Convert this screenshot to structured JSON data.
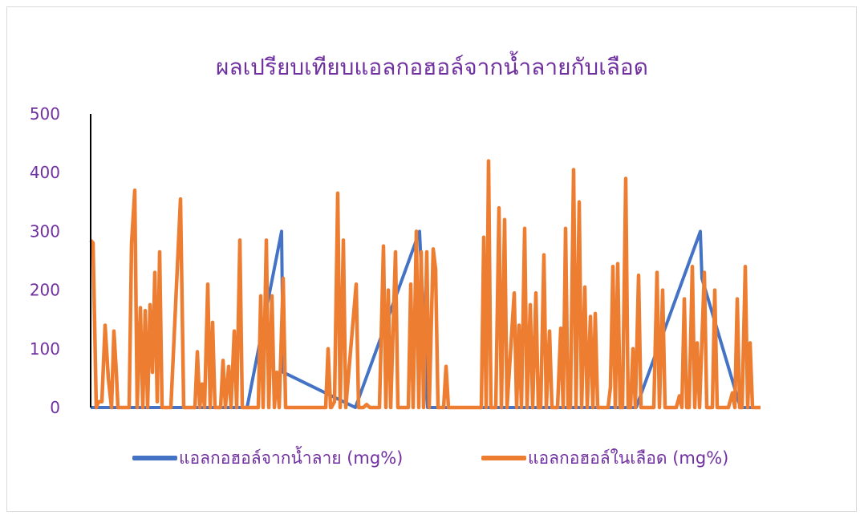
{
  "chart_data": {
    "type": "line",
    "title": "ผลเปรียบเทียบแอลกอฮอล์จากน้ำลายกับเลือด",
    "xlabel": "",
    "ylabel": "",
    "ylim": [
      0,
      500
    ],
    "yticks": [
      "0",
      "100",
      "200",
      "300",
      "400",
      "500"
    ],
    "grid": false,
    "legend_position": "bottom",
    "series": [
      {
        "name": "แอลกอฮอล์จากน้ำลาย (mg%)",
        "color": "#4472c4",
        "points": [
          [
            0,
            0
          ],
          [
            19,
            0
          ],
          [
            62,
            0
          ],
          [
            160,
            0
          ],
          [
            195,
            0
          ],
          [
            238,
            300
          ],
          [
            240,
            60
          ],
          [
            330,
            0
          ],
          [
            410,
            300
          ],
          [
            420,
            0
          ],
          [
            540,
            0
          ],
          [
            590,
            0
          ],
          [
            610,
            0
          ],
          [
            680,
            0
          ],
          [
            760,
            300
          ],
          [
            762,
            220
          ],
          [
            810,
            0
          ],
          [
            835,
            0
          ]
        ]
      },
      {
        "name": "แอลกอฮอล์ในเลือด (mg%)",
        "color": "#ed7d31",
        "points": [
          [
            0,
            285
          ],
          [
            3,
            280
          ],
          [
            7,
            0
          ],
          [
            10,
            10
          ],
          [
            14,
            10
          ],
          [
            18,
            140
          ],
          [
            22,
            50
          ],
          [
            26,
            0
          ],
          [
            29,
            130
          ],
          [
            32,
            60
          ],
          [
            34,
            0
          ],
          [
            48,
            0
          ],
          [
            51,
            280
          ],
          [
            55,
            370
          ],
          [
            58,
            0
          ],
          [
            62,
            170
          ],
          [
            65,
            0
          ],
          [
            68,
            165
          ],
          [
            71,
            0
          ],
          [
            74,
            175
          ],
          [
            77,
            60
          ],
          [
            80,
            230
          ],
          [
            83,
            10
          ],
          [
            86,
            265
          ],
          [
            89,
            0
          ],
          [
            100,
            0
          ],
          [
            112,
            355
          ],
          [
            116,
            0
          ],
          [
            130,
            0
          ],
          [
            133,
            95
          ],
          [
            136,
            0
          ],
          [
            139,
            40
          ],
          [
            142,
            0
          ],
          [
            146,
            210
          ],
          [
            149,
            0
          ],
          [
            152,
            145
          ],
          [
            155,
            0
          ],
          [
            162,
            0
          ],
          [
            165,
            80
          ],
          [
            168,
            0
          ],
          [
            172,
            70
          ],
          [
            175,
            0
          ],
          [
            179,
            130
          ],
          [
            182,
            0
          ],
          [
            186,
            285
          ],
          [
            189,
            0
          ],
          [
            196,
            0
          ],
          [
            209,
            0
          ],
          [
            212,
            190
          ],
          [
            215,
            0
          ],
          [
            219,
            285
          ],
          [
            222,
            0
          ],
          [
            226,
            190
          ],
          [
            229,
            0
          ],
          [
            232,
            60
          ],
          [
            235,
            0
          ],
          [
            240,
            220
          ],
          [
            243,
            0
          ],
          [
            300,
            0
          ],
          [
            293,
            0
          ],
          [
            296,
            100
          ],
          [
            299,
            0
          ],
          [
            304,
            10
          ],
          [
            308,
            365
          ],
          [
            311,
            0
          ],
          [
            315,
            285
          ],
          [
            318,
            0
          ],
          [
            331,
            210
          ],
          [
            334,
            0
          ],
          [
            340,
            0
          ],
          [
            344,
            5
          ],
          [
            348,
            0
          ],
          [
            360,
            0
          ],
          [
            365,
            275
          ],
          [
            368,
            0
          ],
          [
            371,
            200
          ],
          [
            374,
            0
          ],
          [
            380,
            265
          ],
          [
            383,
            0
          ],
          [
            396,
            0
          ],
          [
            399,
            210
          ],
          [
            402,
            0
          ],
          [
            406,
            300
          ],
          [
            409,
            0
          ],
          [
            412,
            265
          ],
          [
            415,
            0
          ],
          [
            419,
            265
          ],
          [
            422,
            0
          ],
          [
            427,
            270
          ],
          [
            430,
            235
          ],
          [
            433,
            0
          ],
          [
            440,
            0
          ],
          [
            443,
            70
          ],
          [
            446,
            0
          ],
          [
            487,
            0
          ],
          [
            490,
            290
          ],
          [
            493,
            0
          ],
          [
            496,
            420
          ],
          [
            499,
            0
          ],
          [
            505,
            0
          ],
          [
            509,
            340
          ],
          [
            512,
            0
          ],
          [
            516,
            320
          ],
          [
            519,
            0
          ],
          [
            528,
            195
          ],
          [
            531,
            0
          ],
          [
            534,
            140
          ],
          [
            537,
            0
          ],
          [
            541,
            305
          ],
          [
            544,
            0
          ],
          [
            548,
            175
          ],
          [
            551,
            0
          ],
          [
            555,
            195
          ],
          [
            558,
            0
          ],
          [
            561,
            0
          ],
          [
            565,
            260
          ],
          [
            568,
            0
          ],
          [
            572,
            130
          ],
          [
            575,
            0
          ],
          [
            582,
            0
          ],
          [
            586,
            135
          ],
          [
            589,
            0
          ],
          [
            592,
            305
          ],
          [
            595,
            0
          ],
          [
            598,
            0
          ],
          [
            602,
            405
          ],
          [
            605,
            0
          ],
          [
            609,
            350
          ],
          [
            612,
            0
          ],
          [
            616,
            205
          ],
          [
            619,
            0
          ],
          [
            623,
            155
          ],
          [
            626,
            0
          ],
          [
            629,
            160
          ],
          [
            632,
            0
          ],
          [
            640,
            0
          ],
          [
            645,
            0
          ],
          [
            648,
            35
          ],
          [
            651,
            240
          ],
          [
            654,
            0
          ],
          [
            657,
            245
          ],
          [
            660,
            0
          ],
          [
            663,
            0
          ],
          [
            667,
            390
          ],
          [
            670,
            0
          ],
          [
            673,
            0
          ],
          [
            676,
            100
          ],
          [
            679,
            0
          ],
          [
            683,
            225
          ],
          [
            686,
            0
          ],
          [
            690,
            0
          ],
          [
            702,
            0
          ],
          [
            706,
            230
          ],
          [
            709,
            0
          ],
          [
            713,
            200
          ],
          [
            716,
            0
          ],
          [
            730,
            0
          ],
          [
            734,
            20
          ],
          [
            737,
            0
          ],
          [
            740,
            185
          ],
          [
            743,
            0
          ],
          [
            746,
            0
          ],
          [
            750,
            240
          ],
          [
            753,
            0
          ],
          [
            756,
            110
          ],
          [
            759,
            0
          ],
          [
            765,
            230
          ],
          [
            768,
            0
          ],
          [
            775,
            0
          ],
          [
            778,
            200
          ],
          [
            781,
            0
          ],
          [
            790,
            0
          ],
          [
            795,
            0
          ],
          [
            800,
            25
          ],
          [
            803,
            0
          ],
          [
            806,
            185
          ],
          [
            809,
            0
          ],
          [
            812,
            0
          ],
          [
            816,
            240
          ],
          [
            819,
            0
          ],
          [
            822,
            110
          ],
          [
            825,
            0
          ],
          [
            835,
            0
          ]
        ]
      }
    ]
  }
}
